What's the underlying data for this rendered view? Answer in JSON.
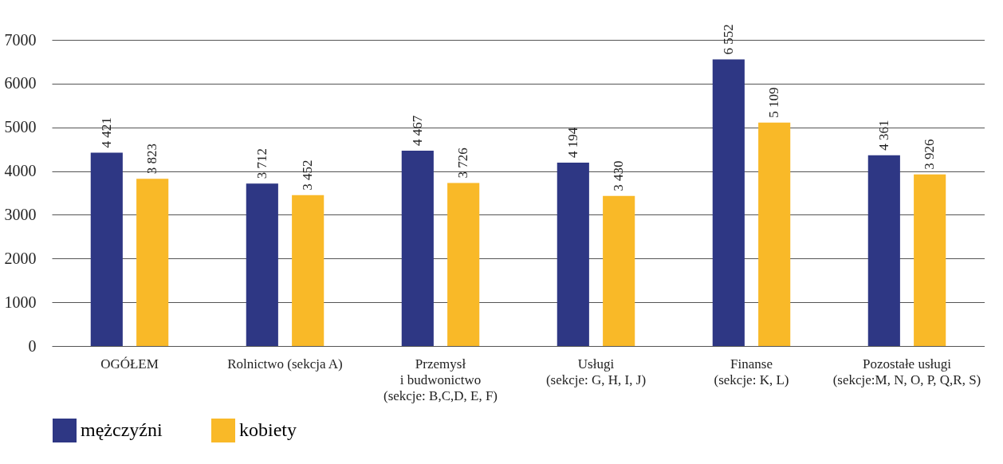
{
  "chart_data": {
    "type": "bar",
    "categories": [
      "OGÓŁEM",
      "Rolnictwo (sekcja A)",
      "Przemysł\ni budwonictwo\n(sekcje: B,C,D, E, F)",
      "Usługi\n(sekcje: G, H, I, J)",
      "Finanse\n(sekcje: K, L)",
      "Pozostałe usługi\n(sekcje:M, N, O, P, Q,R, S)"
    ],
    "series": [
      {
        "name": "mężczyźni",
        "color": "#2e3784",
        "values": [
          4421,
          3712,
          4467,
          4194,
          6552,
          4361
        ],
        "value_labels": [
          "4 421",
          "3 712",
          "4 467",
          "4 194",
          "6 552",
          "4 361"
        ]
      },
      {
        "name": "kobiety",
        "color": "#f9b928",
        "values": [
          3823,
          3452,
          3726,
          3430,
          5109,
          3926
        ],
        "value_labels": [
          "3 823",
          "3 452",
          "3 726",
          "3 430",
          "5 109",
          "3 926"
        ]
      }
    ],
    "ylim": [
      0,
      7000
    ],
    "yticks": [
      0,
      1000,
      2000,
      3000,
      4000,
      5000,
      6000,
      7000
    ],
    "grid": "y",
    "legend": "bottom"
  }
}
